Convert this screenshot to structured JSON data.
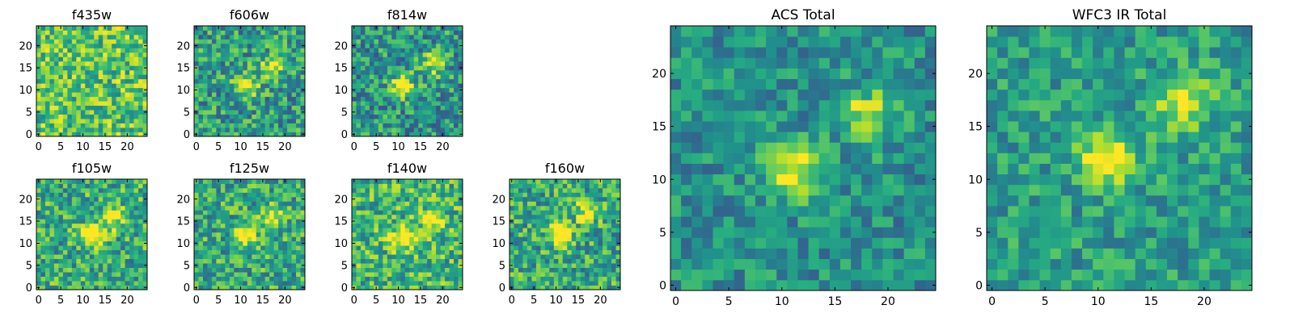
{
  "figure": {
    "colormap": "viridis",
    "colormap_stops": [
      "#440154",
      "#472d7b",
      "#3b528b",
      "#2c728e",
      "#21918c",
      "#28ae80",
      "#5ec962",
      "#addc30",
      "#fde725"
    ]
  },
  "chart_data": [
    {
      "type": "heatmap",
      "title": "f435w",
      "xlim": [
        0,
        24
      ],
      "ylim": [
        0,
        24
      ],
      "xticks": [
        "0",
        "5",
        "10",
        "15",
        "20"
      ],
      "yticks": [
        "0",
        "5",
        "10",
        "15",
        "20"
      ],
      "grid": false,
      "source_peaks": [],
      "noise_level": "high",
      "background_level": 0.72
    },
    {
      "type": "heatmap",
      "title": "f606w",
      "xlim": [
        0,
        24
      ],
      "ylim": [
        0,
        24
      ],
      "xticks": [
        "0",
        "5",
        "10",
        "15",
        "20"
      ],
      "yticks": [
        "0",
        "5",
        "10",
        "15",
        "20"
      ],
      "grid": false,
      "source_peaks": [
        [
          11,
          11
        ],
        [
          17,
          15
        ]
      ],
      "noise_level": "high",
      "background_level": 0.55
    },
    {
      "type": "heatmap",
      "title": "f814w",
      "xlim": [
        0,
        24
      ],
      "ylim": [
        0,
        24
      ],
      "xticks": [
        "0",
        "5",
        "10",
        "15",
        "20"
      ],
      "yticks": [
        "0",
        "5",
        "10",
        "15",
        "20"
      ],
      "grid": false,
      "source_peaks": [
        [
          11,
          11
        ],
        [
          18,
          16
        ]
      ],
      "noise_level": "high",
      "background_level": 0.52
    },
    {
      "type": "heatmap",
      "title": "f105w",
      "xlim": [
        0,
        24
      ],
      "ylim": [
        0,
        24
      ],
      "xticks": [
        "0",
        "5",
        "10",
        "15",
        "20"
      ],
      "yticks": [
        "0",
        "5",
        "10",
        "15",
        "20"
      ],
      "grid": false,
      "source_peaks": [
        [
          12,
          12
        ],
        [
          17,
          16
        ]
      ],
      "noise_level": "high",
      "background_level": 0.62
    },
    {
      "type": "heatmap",
      "title": "f125w",
      "xlim": [
        0,
        24
      ],
      "ylim": [
        0,
        24
      ],
      "xticks": [
        "0",
        "5",
        "10",
        "15",
        "20"
      ],
      "yticks": [
        "0",
        "5",
        "10",
        "15",
        "20"
      ],
      "grid": false,
      "source_peaks": [
        [
          11,
          12
        ],
        [
          17,
          16
        ]
      ],
      "noise_level": "high",
      "background_level": 0.6
    },
    {
      "type": "heatmap",
      "title": "f140w",
      "xlim": [
        0,
        24
      ],
      "ylim": [
        0,
        24
      ],
      "xticks": [
        "0",
        "5",
        "10",
        "15",
        "20"
      ],
      "yticks": [
        "0",
        "5",
        "10",
        "15",
        "20"
      ],
      "grid": false,
      "source_peaks": [
        [
          11,
          11
        ],
        [
          18,
          15
        ]
      ],
      "noise_level": "high",
      "background_level": 0.65
    },
    {
      "type": "heatmap",
      "title": "f160w",
      "xlim": [
        0,
        24
      ],
      "ylim": [
        0,
        24
      ],
      "xticks": [
        "0",
        "5",
        "10",
        "15",
        "20"
      ],
      "yticks": [
        "0",
        "5",
        "10",
        "15",
        "20"
      ],
      "grid": false,
      "source_peaks": [
        [
          11,
          12
        ],
        [
          17,
          17
        ]
      ],
      "noise_level": "high",
      "background_level": 0.6
    },
    {
      "type": "heatmap",
      "title": "ACS Total",
      "xlim": [
        0,
        24
      ],
      "ylim": [
        0,
        24
      ],
      "xticks": [
        "0",
        "5",
        "10",
        "15",
        "20"
      ],
      "yticks": [
        "0",
        "5",
        "10",
        "15",
        "20"
      ],
      "grid": false,
      "source_peaks": [
        [
          11,
          11
        ],
        [
          18,
          16
        ]
      ],
      "noise_level": "medium",
      "background_level": 0.5
    },
    {
      "type": "heatmap",
      "title": "WFC3 IR Total",
      "xlim": [
        0,
        24
      ],
      "ylim": [
        0,
        24
      ],
      "xticks": [
        "0",
        "5",
        "10",
        "15",
        "20"
      ],
      "yticks": [
        "0",
        "5",
        "10",
        "15",
        "20"
      ],
      "grid": false,
      "source_peaks": [
        [
          11,
          12
        ],
        [
          18,
          17
        ]
      ],
      "noise_level": "medium",
      "background_level": 0.55
    }
  ]
}
